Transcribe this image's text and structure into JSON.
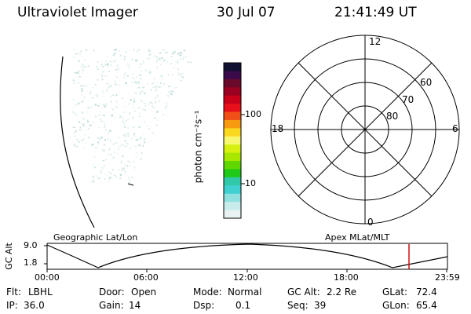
{
  "header": {
    "title": "Ultraviolet Imager",
    "date": "30 Jul 07",
    "time": "21:41:49 UT"
  },
  "colorbar": {
    "unit_label": "photon cm⁻²s⁻¹",
    "ticks": [
      "100",
      "10"
    ],
    "colors": [
      "#101030",
      "#3a0a4a",
      "#6a0a2a",
      "#9a0020",
      "#c8001a",
      "#e8101a",
      "#f05018",
      "#f89a10",
      "#fbd820",
      "#f8f870",
      "#d8f010",
      "#a8e800",
      "#60d800",
      "#20c818",
      "#30c8a8",
      "#40d0d0",
      "#90e0e0",
      "#c8ecec",
      "#e8f2f2"
    ]
  },
  "polar": {
    "mlt_labels": {
      "top": "12",
      "left": "18",
      "right": "6",
      "bottom": "0"
    },
    "lat_labels": [
      "60",
      "70",
      "80"
    ]
  },
  "timeline": {
    "left_label": "Geographic Lat/Lon",
    "right_label": "Apex MLat/MLT",
    "y_axis_title": "GC Alt",
    "y_ticks": [
      "9.0",
      "1.8"
    ],
    "x_ticks": [
      "00:00",
      "06:00",
      "12:00",
      "18:00",
      "23:59"
    ],
    "current_time_marker_color": "#d01010"
  },
  "status": {
    "flt_label": "Flt:",
    "flt_value": "LBHL",
    "ip_label": "IP:",
    "ip_value": "36.0",
    "door_label": "Door:",
    "door_value": "Open",
    "gain_label": "Gain:",
    "gain_value": "14",
    "mode_label": "Mode:",
    "mode_value": "Normal",
    "dsp_label": "Dsp:",
    "dsp_value": "0.1",
    "gcalt_label": "GC Alt:",
    "gcalt_value": "2.2 Re",
    "seq_label": "Seq:",
    "seq_value": "39",
    "glat_label": "GLat:",
    "glat_value": "72.4",
    "glon_label": "GLon:",
    "glon_value": "65.4"
  }
}
